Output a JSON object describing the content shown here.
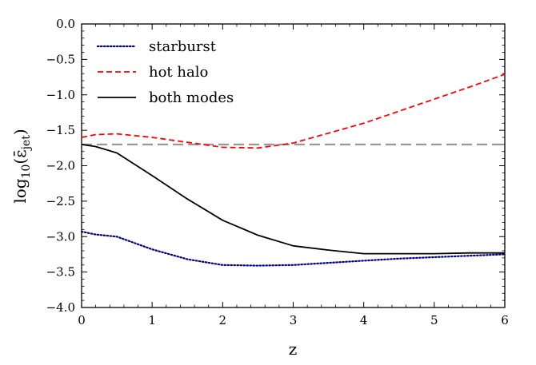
{
  "chart_data": {
    "type": "line",
    "xlabel": "z",
    "ylabel_base": "log",
    "ylabel_sub": "10",
    "ylabel_arg": "(ε̄",
    "ylabel_arg_sub": "jet",
    "ylabel_close": ")",
    "xlim": [
      0,
      6
    ],
    "ylim": [
      -4.0,
      0.0
    ],
    "xticks": [
      0,
      1,
      2,
      3,
      4,
      5,
      6
    ],
    "xtick_labels": [
      "0",
      "1",
      "2",
      "3",
      "4",
      "5",
      "6"
    ],
    "yticks": [
      0.0,
      -0.5,
      -1.0,
      -1.5,
      -2.0,
      -2.5,
      -3.0,
      -3.5,
      -4.0
    ],
    "ytick_labels": [
      "0.0",
      "−0.5",
      "−1.0",
      "−1.5",
      "−2.0",
      "−2.5",
      "−3.0",
      "−3.5",
      "−4.0"
    ],
    "grid": false,
    "legend_position": "top-left",
    "reference_line": {
      "y": -1.7,
      "color": "#999999",
      "style": "dashed"
    },
    "series": [
      {
        "name": "starburst",
        "color": "#00008b",
        "style": "dotted",
        "x": [
          0,
          0.2,
          0.5,
          1.0,
          1.5,
          2.0,
          2.5,
          3.0,
          3.5,
          4.0,
          4.5,
          5.0,
          5.5,
          6.0
        ],
        "y": [
          -2.93,
          -2.97,
          -3.0,
          -3.18,
          -3.32,
          -3.4,
          -3.41,
          -3.4,
          -3.37,
          -3.34,
          -3.31,
          -3.29,
          -3.27,
          -3.25
        ]
      },
      {
        "name": "hot halo",
        "color": "#ff0000",
        "style": "dashed",
        "x": [
          0,
          0.2,
          0.5,
          1.0,
          1.5,
          2.0,
          2.5,
          3.0,
          3.5,
          4.0,
          4.5,
          5.0,
          5.5,
          6.0
        ],
        "y": [
          -1.6,
          -1.56,
          -1.55,
          -1.6,
          -1.67,
          -1.74,
          -1.75,
          -1.68,
          -1.54,
          -1.4,
          -1.23,
          -1.06,
          -0.89,
          -0.71
        ]
      },
      {
        "name": "both modes",
        "color": "#000000",
        "style": "solid",
        "x": [
          0,
          0.2,
          0.5,
          1.0,
          1.5,
          2.0,
          2.5,
          3.0,
          3.5,
          4.0,
          4.5,
          5.0,
          5.5,
          6.0
        ],
        "y": [
          -1.7,
          -1.73,
          -1.82,
          -2.14,
          -2.47,
          -2.77,
          -2.98,
          -3.13,
          -3.19,
          -3.24,
          -3.24,
          -3.24,
          -3.23,
          -3.23
        ]
      }
    ]
  }
}
